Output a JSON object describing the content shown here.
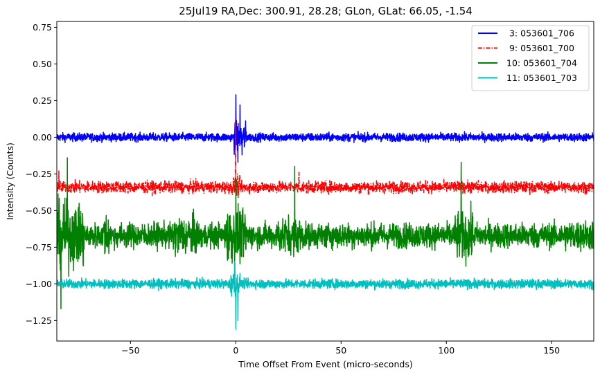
{
  "chart_data": {
    "type": "line",
    "title": "25Jul19 RA,Dec:  300.91,  28.28; GLon, GLat:   66.05,  -1.54",
    "xlabel": "Time Offset From Event (micro-seconds)",
    "ylabel": "Intensity (Counts)",
    "xlim": [
      -85,
      170
    ],
    "ylim": [
      -1.39,
      0.79
    ],
    "xticks": [
      -50,
      0,
      50,
      100,
      150
    ],
    "xtick_labels": [
      "−50",
      "0",
      "50",
      "100",
      "150"
    ],
    "yticks": [
      0.75,
      0.5,
      0.25,
      0.0,
      -0.25,
      -0.5,
      -0.75,
      -1.0,
      -1.25
    ],
    "ytick_labels": [
      "0.75",
      "0.50",
      "0.25",
      "0.00",
      "−0.25",
      "−0.50",
      "−0.75",
      "−1.00",
      "−1.25"
    ],
    "legend_position": "top-right",
    "series": [
      {
        "name": "3: 053601_706",
        "legend_label": " 3: 053601_706",
        "color": "#0000ff",
        "style": "solid",
        "baseline": 0.0,
        "noise_sd": 0.02,
        "bursts": [
          {
            "start": -1,
            "end": 5,
            "amp": 0.12
          }
        ],
        "spikes": [
          {
            "x": 0,
            "y": 0.29
          },
          {
            "x": 1.0,
            "y": -0.17
          },
          {
            "x": 2.0,
            "y": 0.22
          },
          {
            "x": 3.0,
            "y": -0.12
          }
        ]
      },
      {
        "name": "9: 053601_700",
        "legend_label": " 9: 053601_700",
        "color": "#ff0000",
        "style": "dashdot",
        "baseline": -0.34,
        "noise_sd": 0.028,
        "bursts": [
          {
            "start": -2,
            "end": 2,
            "amp": 0.08
          }
        ],
        "spikes": [
          {
            "x": -0.2,
            "y": 0.12
          },
          {
            "x": -84,
            "y": -0.23
          },
          {
            "x": 30,
            "y": -0.24
          }
        ]
      },
      {
        "name": "10: 053601_704",
        "legend_label": "10: 053601_704",
        "color": "#008000",
        "style": "solid",
        "baseline": -0.67,
        "noise_sd": 0.06,
        "bursts": [
          {
            "start": -85,
            "end": -72,
            "amp": 0.25
          },
          {
            "start": -63,
            "end": -60,
            "amp": 0.18
          },
          {
            "start": -30,
            "end": -18,
            "amp": 0.16
          },
          {
            "start": -5,
            "end": 5,
            "amp": 0.22
          },
          {
            "start": 20,
            "end": 32,
            "amp": 0.15
          },
          {
            "start": 104,
            "end": 113,
            "amp": 0.2
          },
          {
            "start": 156,
            "end": 170,
            "amp": 0.12
          }
        ],
        "spikes": [
          {
            "x": -80,
            "y": -0.14
          },
          {
            "x": -83,
            "y": -1.17
          },
          {
            "x": 28,
            "y": -0.2
          },
          {
            "x": 107,
            "y": -0.17
          },
          {
            "x": 0,
            "y": -0.28
          }
        ]
      },
      {
        "name": "11: 053601_703",
        "legend_label": "11: 053601_703",
        "color": "#00bfbf",
        "style": "solid",
        "baseline": -1.0,
        "noise_sd": 0.022,
        "bursts": [
          {
            "start": -3,
            "end": 2,
            "amp": 0.09
          }
        ],
        "spikes": [
          {
            "x": 0,
            "y": -1.31
          },
          {
            "x": -0.5,
            "y": -0.85
          },
          {
            "x": 1,
            "y": -1.25
          }
        ]
      }
    ]
  }
}
